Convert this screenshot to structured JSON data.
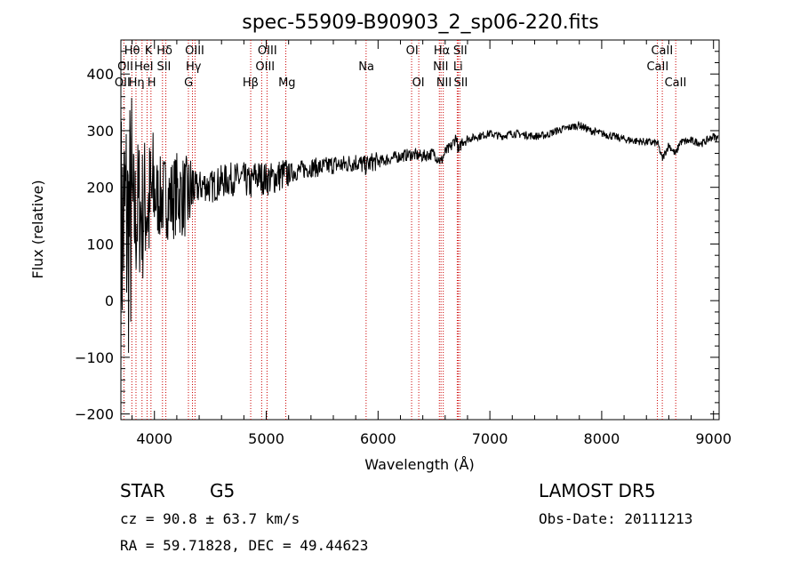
{
  "chart_data": {
    "type": "line",
    "title": "spec-55909-B90903_2_sp06-220.fits",
    "xlabel": "Wavelength (Å)",
    "ylabel": "Flux (relative)",
    "xlim": [
      3700,
      9050
    ],
    "ylim": [
      -210,
      460
    ],
    "x_ticks": [
      4000,
      5000,
      6000,
      7000,
      8000,
      9000
    ],
    "y_ticks": [
      -200,
      -100,
      0,
      100,
      200,
      300,
      400
    ],
    "grid": false,
    "line_color": "#000000",
    "marker_color": "#cc0000",
    "series": [
      {
        "x": [
          3700,
          3740,
          3770,
          3800,
          3830,
          3860,
          3890,
          3920,
          3950,
          3980,
          4000,
          4050,
          4100,
          4150,
          4200,
          4250,
          4300,
          4340,
          4400,
          4450,
          4500,
          4600,
          4700,
          4800,
          4860,
          4900,
          5000,
          5050,
          5100,
          5200,
          5300,
          5400,
          5500,
          5600,
          5700,
          5800,
          5890,
          5950,
          6000,
          6100,
          6200,
          6300,
          6400,
          6500,
          6563,
          6600,
          6650,
          6700,
          6720,
          6750,
          6800,
          6900,
          7000,
          7100,
          7200,
          7300,
          7400,
          7500,
          7600,
          7700,
          7800,
          7850,
          7900,
          8000,
          8100,
          8200,
          8300,
          8400,
          8500,
          8542,
          8600,
          8662,
          8700,
          8800,
          8900,
          9000,
          9050
        ],
        "y": [
          110,
          150,
          120,
          160,
          140,
          170,
          150,
          175,
          160,
          180,
          185,
          180,
          185,
          178,
          190,
          185,
          180,
          195,
          200,
          205,
          200,
          210,
          215,
          215,
          205,
          220,
          215,
          215,
          220,
          225,
          230,
          235,
          235,
          240,
          240,
          245,
          238,
          245,
          245,
          250,
          255,
          258,
          255,
          260,
          245,
          262,
          270,
          290,
          260,
          282,
          285,
          290,
          295,
          290,
          295,
          293,
          290,
          292,
          300,
          305,
          310,
          305,
          300,
          295,
          290,
          285,
          282,
          280,
          278,
          250,
          275,
          258,
          280,
          282,
          278,
          290,
          285
        ]
      }
    ],
    "line_markers": [
      {
        "name": "Hθ",
        "wl": 3798
      },
      {
        "name": "OII",
        "wl": 3727
      },
      {
        "name": "Hη",
        "wl": 3835
      },
      {
        "name": "HeI",
        "wl": 3889
      },
      {
        "name": "K",
        "wl": 3934
      },
      {
        "name": "H",
        "wl": 3969
      },
      {
        "name": "Hδ",
        "wl": 4102
      },
      {
        "name": "SII",
        "wl": 4072
      },
      {
        "name": "OIII",
        "wl": 4363
      },
      {
        "name": "Hγ",
        "wl": 4340
      },
      {
        "name": "G",
        "wl": 4304
      },
      {
        "name": "Hβ",
        "wl": 4861
      },
      {
        "name": "OIII",
        "wl": 4959
      },
      {
        "name": "OIII",
        "wl": 5007
      },
      {
        "name": "Mg",
        "wl": 5175
      },
      {
        "name": "Na",
        "wl": 5893
      },
      {
        "name": "OI",
        "wl": 6300
      },
      {
        "name": "OI",
        "wl": 6364
      },
      {
        "name": "Hα",
        "wl": 6563
      },
      {
        "name": "NII",
        "wl": 6548
      },
      {
        "name": "NII",
        "wl": 6583
      },
      {
        "name": "SII",
        "wl": 6717
      },
      {
        "name": "Li",
        "wl": 6708
      },
      {
        "name": "SII",
        "wl": 6731
      },
      {
        "name": "CaII",
        "wl": 8498
      },
      {
        "name": "CaII",
        "wl": 8542
      },
      {
        "name": "CaII",
        "wl": 8662
      }
    ],
    "marker_labels": [
      {
        "text": "Hθ",
        "row": 0,
        "wl": 3800
      },
      {
        "text": "K",
        "row": 0,
        "wl": 3948
      },
      {
        "text": "Hδ",
        "row": 0,
        "wl": 4090
      },
      {
        "text": "OIII",
        "row": 0,
        "wl": 4360
      },
      {
        "text": "OIII",
        "row": 0,
        "wl": 5010
      },
      {
        "text": "OI",
        "row": 0,
        "wl": 6305
      },
      {
        "text": "Hα",
        "row": 0,
        "wl": 6570
      },
      {
        "text": "SII",
        "row": 0,
        "wl": 6735
      },
      {
        "text": "CaII",
        "row": 0,
        "wl": 8540
      },
      {
        "text": "OII",
        "row": 1,
        "wl": 3740
      },
      {
        "text": "HeI",
        "row": 1,
        "wl": 3905
      },
      {
        "text": "SII",
        "row": 1,
        "wl": 4085
      },
      {
        "text": "Hγ",
        "row": 1,
        "wl": 4350
      },
      {
        "text": "OIII",
        "row": 1,
        "wl": 4990
      },
      {
        "text": "Na",
        "row": 1,
        "wl": 5895
      },
      {
        "text": "NII",
        "row": 1,
        "wl": 6560
      },
      {
        "text": "Li",
        "row": 1,
        "wl": 6715
      },
      {
        "text": "CaII",
        "row": 1,
        "wl": 8500
      },
      {
        "text": "OII",
        "row": 2,
        "wl": 3715
      },
      {
        "text": "Hη",
        "row": 2,
        "wl": 3840
      },
      {
        "text": "H",
        "row": 2,
        "wl": 3975
      },
      {
        "text": "G",
        "row": 2,
        "wl": 4305
      },
      {
        "text": "Hβ",
        "row": 2,
        "wl": 4860
      },
      {
        "text": "Mg",
        "row": 2,
        "wl": 5185
      },
      {
        "text": "OI",
        "row": 2,
        "wl": 6360
      },
      {
        "text": "NII",
        "row": 2,
        "wl": 6590
      },
      {
        "text": "SII",
        "row": 2,
        "wl": 6740
      },
      {
        "text": "CaII",
        "row": 2,
        "wl": 8660
      }
    ]
  },
  "info": {
    "object_class": "STAR",
    "subclass": "G5",
    "survey": "LAMOST DR5",
    "redshift": "cz = 90.8 ± 63.7 km/s",
    "obs_date": "Obs-Date: 20111213",
    "coords": "RA =  59.71828, DEC =  49.44623"
  }
}
